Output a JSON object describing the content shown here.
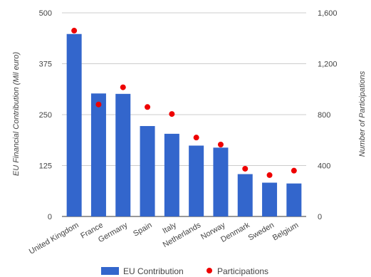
{
  "chart_data": {
    "type": "bar",
    "categories": [
      "United Kingdom",
      "France",
      "Germany",
      "Spain",
      "Italy",
      "Netherlands",
      "Norway",
      "Denmark",
      "Sweden",
      "Belgium"
    ],
    "series": [
      {
        "name": "EU Contribution",
        "kind": "bar",
        "axis": "left",
        "color": "#3366cc",
        "values": [
          448,
          302,
          301,
          222,
          203,
          174,
          169,
          104,
          83,
          81
        ]
      },
      {
        "name": "Participations",
        "kind": "scatter",
        "axis": "right",
        "color": "#ee0000",
        "values": [
          1460,
          880,
          1015,
          860,
          805,
          620,
          565,
          375,
          325,
          360
        ]
      }
    ],
    "ylabel": "EU Financial Contribution (Mil euro)",
    "y2label": "Number of Participations",
    "ylim": [
      0,
      500
    ],
    "y2lim": [
      0,
      1600
    ],
    "yticks": [
      "0",
      "125",
      "250",
      "375",
      "500"
    ],
    "y2ticks": [
      "0",
      "400",
      "800",
      "1,200",
      "1,600"
    ],
    "grid": true,
    "legend_position": "bottom"
  }
}
